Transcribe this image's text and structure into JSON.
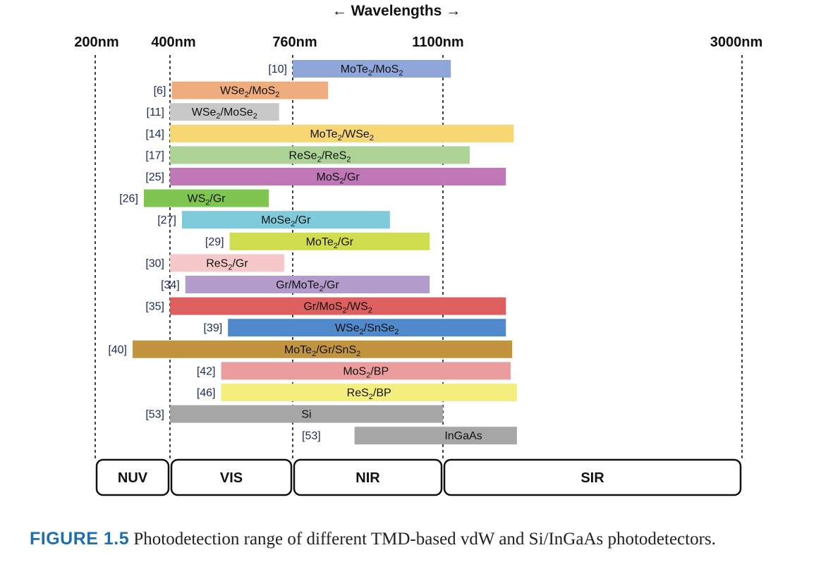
{
  "chart_data": {
    "type": "bar",
    "orientation": "horizontal-range",
    "title": "← Wavelengths →",
    "x_ticks": [
      "200nm",
      "400nm",
      "760nm",
      "1100nm",
      "3000nm"
    ],
    "regions": [
      {
        "label": "NUV",
        "from_tick": 0,
        "to_tick": 1
      },
      {
        "label": "VIS",
        "from_tick": 1,
        "to_tick": 2
      },
      {
        "label": "NIR",
        "from_tick": 2,
        "to_tick": 3
      },
      {
        "label": "SIR",
        "from_tick": 3,
        "to_tick": 4
      }
    ],
    "bars": [
      {
        "ref": "[10]",
        "main": "MoTe",
        "sub": "2",
        "rest": "/MoS",
        "sub2": "2",
        "start": 760,
        "end": 1150,
        "color": "#8ea6d9"
      },
      {
        "ref": "[6]",
        "main": "WSe",
        "sub": "2",
        "rest": "/MoS",
        "sub2": "2",
        "start": 405,
        "end": 840,
        "color": "#efad7e"
      },
      {
        "ref": "[11]",
        "main": "WSe",
        "sub": "2",
        "rest": "/MoSe",
        "sub2": "2",
        "start": 400,
        "end": 720,
        "color": "#c8c8c8"
      },
      {
        "ref": "[14]",
        "main": "MoTe",
        "sub": "2",
        "rest": "/WSe",
        "sub2": "2",
        "start": 400,
        "end": 1550,
        "color": "#f6d774"
      },
      {
        "ref": "[17]",
        "main": "ReSe",
        "sub": "2",
        "rest": "/ReS",
        "sub2": "2",
        "start": 400,
        "end": 1270,
        "color": "#acd296"
      },
      {
        "ref": "[25]",
        "main": "MoS",
        "sub": "2",
        "rest": "/Gr",
        "sub2": "",
        "start": 400,
        "end": 1500,
        "color": "#bf78b5"
      },
      {
        "ref": "[26]",
        "main": "WS",
        "sub": "2",
        "rest": "/Gr",
        "sub2": "",
        "start": 330,
        "end": 690,
        "color": "#7fc651"
      },
      {
        "ref": "[27]",
        "main": "MoSe",
        "sub": "2",
        "rest": "/Gr",
        "sub2": "",
        "start": 435,
        "end": 980,
        "color": "#7fcbdc"
      },
      {
        "ref": "[29]",
        "main": "MoTe",
        "sub": "2",
        "rest": "/Gr",
        "sub2": "",
        "start": 575,
        "end": 1070,
        "color": "#cfdd4e"
      },
      {
        "ref": "[30]",
        "main": "ReS",
        "sub": "2",
        "rest": "/Gr",
        "sub2": "",
        "start": 400,
        "end": 735,
        "color": "#f5c9ca"
      },
      {
        "ref": "[34]",
        "main": "Gr/MoTe",
        "sub": "2",
        "rest": "/Gr",
        "sub2": "",
        "start": 445,
        "end": 1070,
        "color": "#b39bcb"
      },
      {
        "ref": "[35]",
        "main": "Gr/MoS",
        "sub": "2",
        "rest": "/WS",
        "sub2": "2",
        "start": 400,
        "end": 1500,
        "color": "#de5f5f"
      },
      {
        "ref": "[39]",
        "main": "WSe",
        "sub": "2",
        "rest": "/SnSe",
        "sub2": "2",
        "start": 570,
        "end": 1500,
        "color": "#5089cc"
      },
      {
        "ref": "[40]",
        "main": "MoTe",
        "sub": "2",
        "rest": "/Gr/SnS",
        "sub2": "2",
        "start": 300,
        "end": 1540,
        "color": "#c39440"
      },
      {
        "ref": "[42]",
        "main": "MoS",
        "sub": "2",
        "rest": "/BP",
        "sub2": "",
        "start": 550,
        "end": 1530,
        "color": "#eb9d9d"
      },
      {
        "ref": "[46]",
        "main": "ReS",
        "sub": "2",
        "rest": "/BP",
        "sub2": "",
        "start": 550,
        "end": 1570,
        "color": "#f4ee7e"
      },
      {
        "ref": "[53]",
        "main": "Si",
        "sub": "",
        "rest": "",
        "sub2": "",
        "start": 400,
        "end": 1100,
        "color": "#a6a6a6"
      },
      {
        "ref": "[53]",
        "main": "InGaAs",
        "sub": "",
        "rest": "",
        "sub2": "",
        "start": 900,
        "end": 1570,
        "color": "#a6a6a6"
      }
    ]
  },
  "caption": {
    "figure_number": "FIGURE 1.5",
    "text": "Photodetection range of different TMD-based vdW and Si/InGaAs photodetectors."
  }
}
